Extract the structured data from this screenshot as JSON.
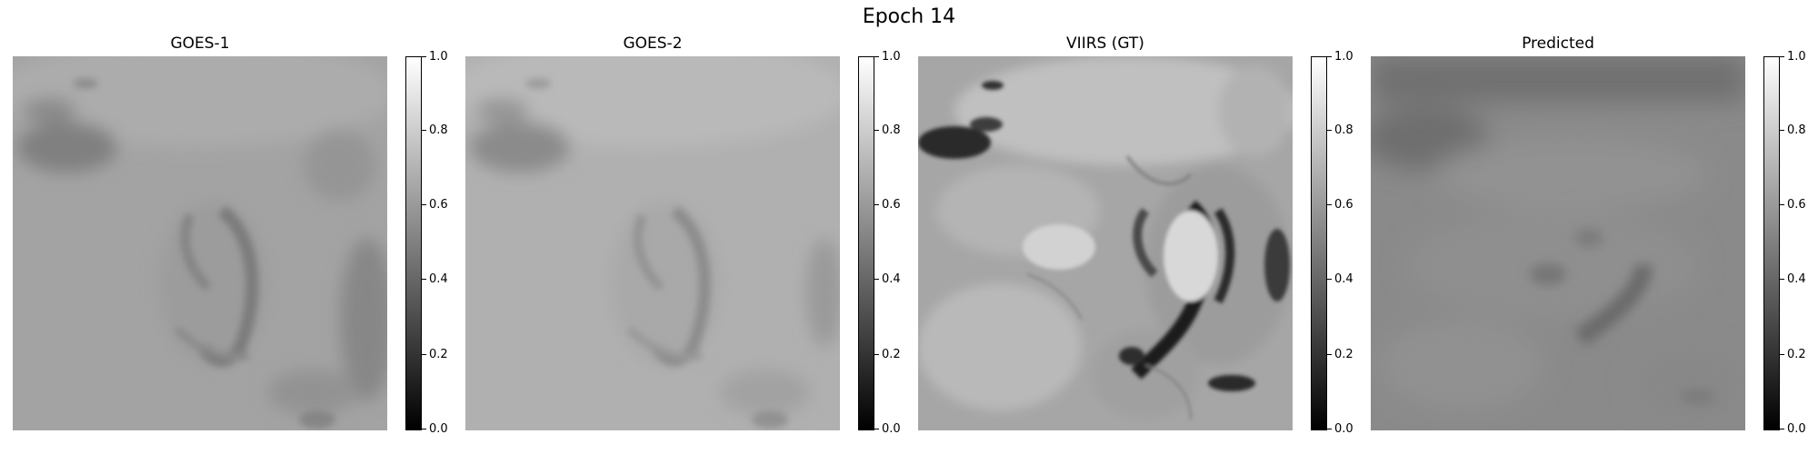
{
  "figure": {
    "title": "Epoch 14"
  },
  "panels": [
    {
      "title": "GOES-1",
      "colormap": "gray",
      "vmin": 0.0,
      "vmax": 1.0,
      "cbar_ticks": [
        "0.0",
        "0.2",
        "0.4",
        "0.6",
        "0.8",
        "1.0"
      ]
    },
    {
      "title": "GOES-2",
      "colormap": "gray",
      "vmin": 0.0,
      "vmax": 1.0,
      "cbar_ticks": [
        "0.0",
        "0.2",
        "0.4",
        "0.6",
        "0.8",
        "1.0"
      ]
    },
    {
      "title": "VIIRS (GT)",
      "colormap": "gray",
      "vmin": 0.0,
      "vmax": 1.0,
      "cbar_ticks": [
        "0.0",
        "0.2",
        "0.4",
        "0.6",
        "0.8",
        "1.0"
      ]
    },
    {
      "title": "Predicted",
      "colormap": "gray",
      "vmin": 0.0,
      "vmax": 1.0,
      "cbar_ticks": [
        "0.0",
        "0.2",
        "0.4",
        "0.6",
        "0.8",
        "1.0"
      ]
    }
  ],
  "colors": {
    "background": "#ffffff",
    "colormap_low": "#000000",
    "colormap_high": "#ffffff"
  }
}
